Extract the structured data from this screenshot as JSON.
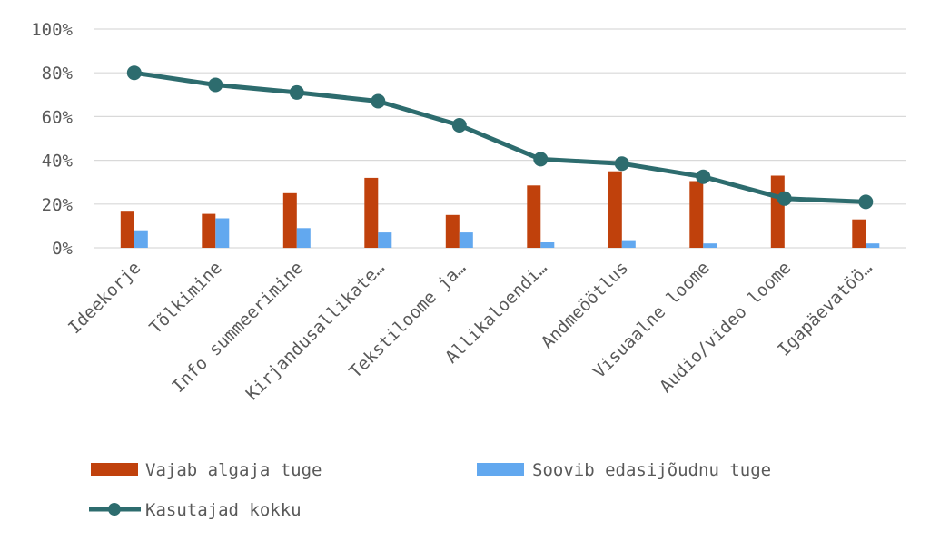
{
  "chart_data": {
    "type": "bar",
    "categories": [
      "Ideekorje",
      "Tõlkimine",
      "Info summeerimine",
      "Kirjandusallikate…",
      "Tekstiloome ja…",
      "Allikaloendi…",
      "Andmeöötlus",
      "Visuaalne loome",
      "Audio/video loome",
      "Igapäevatöö…"
    ],
    "series": [
      {
        "name": "Vajab algaja tuge",
        "kind": "bar",
        "color": "#c0410c",
        "values": [
          16.5,
          15.5,
          25,
          32,
          15,
          28.5,
          35,
          30.5,
          33,
          13
        ]
      },
      {
        "name": "Soovib edasijõudnu tuge",
        "kind": "bar",
        "color": "#62a8ef",
        "values": [
          8,
          13.5,
          9,
          7,
          7,
          2.5,
          3.5,
          2,
          0,
          2
        ]
      },
      {
        "name": "Kasutajad kokku",
        "kind": "line",
        "color": "#2d6c6e",
        "values": [
          80,
          74.5,
          71,
          67,
          56,
          40.5,
          38.5,
          32.5,
          22.5,
          21
        ]
      }
    ],
    "y_ticks": [
      "0%",
      "20%",
      "40%",
      "60%",
      "80%",
      "100%"
    ],
    "ylim": [
      0,
      100
    ],
    "grid": true,
    "legend": "bottom"
  }
}
